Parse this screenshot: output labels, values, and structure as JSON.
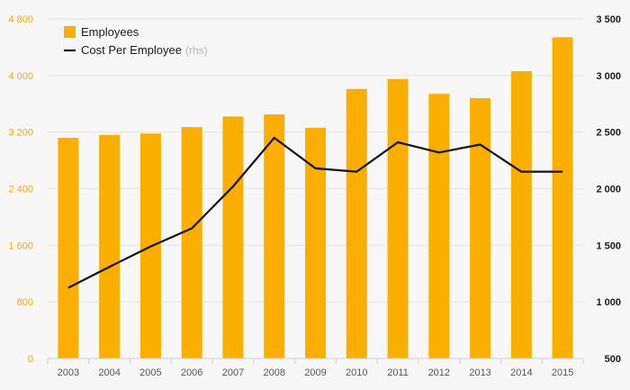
{
  "chart_data": {
    "type": "bar+line",
    "categories": [
      "2003",
      "2004",
      "2005",
      "2006",
      "2007",
      "2008",
      "2009",
      "2010",
      "2011",
      "2012",
      "2013",
      "2014",
      "2015"
    ],
    "series": [
      {
        "name": "Employees",
        "type": "bar",
        "axis": "left",
        "color": "#f9ae00",
        "values": [
          3120,
          3160,
          3180,
          3270,
          3420,
          3450,
          3260,
          3810,
          3950,
          3740,
          3680,
          4060,
          4540
        ]
      },
      {
        "name": "Cost Per Employee",
        "note": "(rhs)",
        "type": "line",
        "axis": "right",
        "color": "#111111",
        "values": [
          1125,
          1310,
          1490,
          1650,
          2020,
          2450,
          2180,
          2150,
          2410,
          2320,
          2390,
          2150,
          2150
        ]
      }
    ],
    "y_left": {
      "ticks": [
        0,
        800,
        1600,
        2400,
        3200,
        4000,
        4800
      ],
      "tick_labels": [
        "0",
        "800",
        "1 600",
        "2 400",
        "3 200",
        "4 000",
        "4 800"
      ],
      "ylim": [
        0,
        4800
      ],
      "color": "#f2a900"
    },
    "y_right": {
      "ticks": [
        500,
        1000,
        1500,
        2000,
        2500,
        3000,
        3500
      ],
      "tick_labels": [
        "500",
        "1 000",
        "1 500",
        "2 000",
        "2 500",
        "3 000",
        "3 500"
      ],
      "ylim": [
        500,
        3500
      ],
      "color": "#1a1a1a"
    },
    "grid": true,
    "legend_position": "top-left",
    "title": "",
    "xlabel": "",
    "ylabel": ""
  }
}
